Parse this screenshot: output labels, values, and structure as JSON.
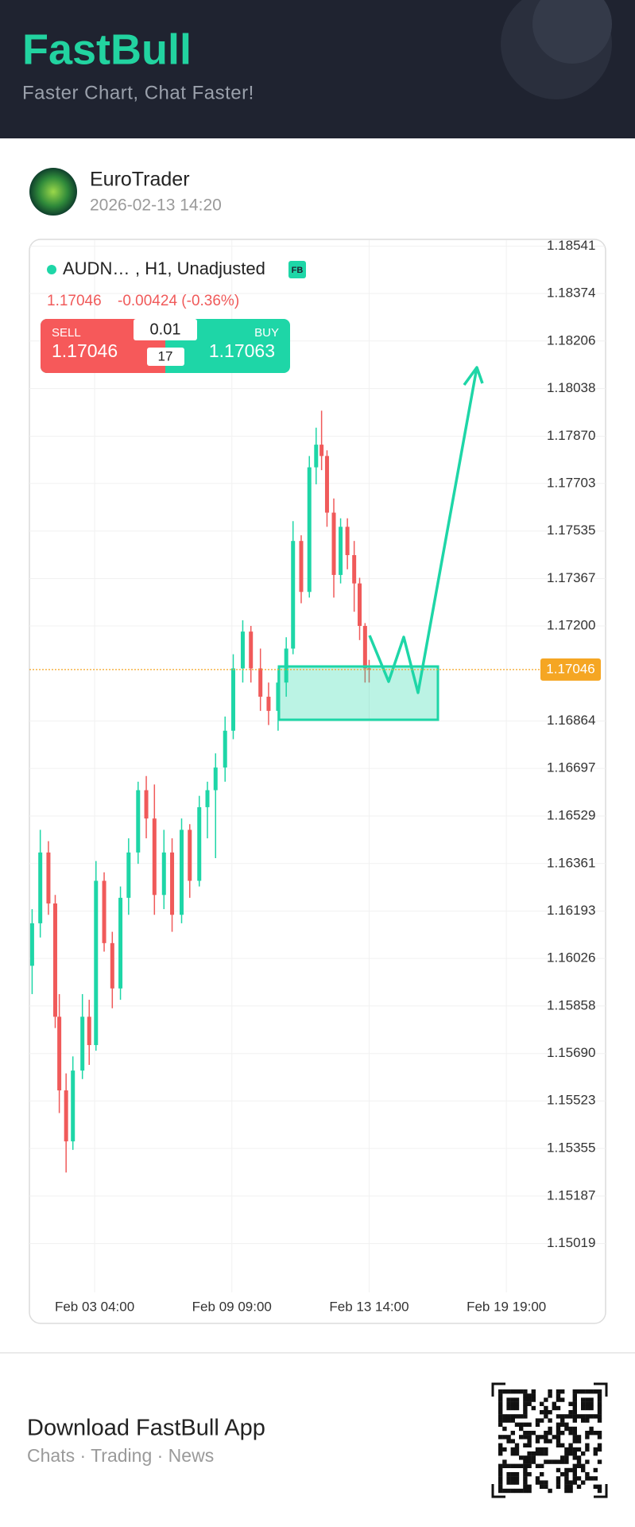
{
  "header": {
    "brand": "FastBull",
    "tagline": "Faster Chart, Chat Faster!"
  },
  "post": {
    "author": "EuroTrader",
    "timestamp": "2026-02-13 14:20"
  },
  "chart_data": {
    "type": "candlestick",
    "symbol": "AUDN…",
    "details": ", H1, Unadjusted",
    "badge": "FB",
    "price": "1.17046",
    "change": "-0.00424 (-0.36%)",
    "trade": {
      "sell_label": "SELL",
      "sell_price": "1.17046",
      "lot": "0.01",
      "spread": "17",
      "buy_label": "BUY",
      "buy_price": "1.17063"
    },
    "x": [
      -46,
      -40,
      -34,
      -29,
      -26,
      -21,
      -16,
      -9,
      -4,
      1,
      7,
      13,
      19,
      25,
      32,
      38,
      44,
      51,
      57,
      64,
      70,
      77,
      83,
      89,
      96,
      102,
      109,
      115,
      122,
      128,
      135,
      141,
      146,
      152,
      158,
      163,
      167,
      171,
      176,
      181,
      186,
      191,
      195,
      199,
      202
    ],
    "open": [
      1.16,
      1.1615,
      1.164,
      1.1622,
      1.1582,
      1.1556,
      1.1538,
      1.1563,
      1.1582,
      1.1572,
      1.163,
      1.1608,
      1.1592,
      1.1624,
      1.164,
      1.1662,
      1.1652,
      1.1625,
      1.164,
      1.1618,
      1.1648,
      1.163,
      1.1656,
      1.1662,
      1.167,
      1.1683,
      1.1705,
      1.1718,
      1.1705,
      1.1695,
      1.169,
      1.17,
      1.1712,
      1.175,
      1.1732,
      1.1776,
      1.1784,
      1.178,
      1.176,
      1.1738,
      1.1755,
      1.1745,
      1.1735,
      1.172,
      1.1705
    ],
    "high": [
      1.162,
      1.1648,
      1.1644,
      1.1625,
      1.159,
      1.1562,
      1.1568,
      1.159,
      1.1588,
      1.1637,
      1.1633,
      1.1612,
      1.1628,
      1.1645,
      1.1665,
      1.1667,
      1.1664,
      1.1648,
      1.1645,
      1.1652,
      1.165,
      1.166,
      1.1665,
      1.1675,
      1.1688,
      1.171,
      1.1722,
      1.172,
      1.1712,
      1.17,
      1.1705,
      1.1716,
      1.1757,
      1.1752,
      1.178,
      1.179,
      1.1796,
      1.1782,
      1.1765,
      1.1758,
      1.1758,
      1.175,
      1.1737,
      1.1721,
      1.1708
    ],
    "low": [
      1.159,
      1.161,
      1.1618,
      1.1578,
      1.1548,
      1.1527,
      1.1535,
      1.156,
      1.1565,
      1.157,
      1.1605,
      1.1585,
      1.1588,
      1.1618,
      1.1636,
      1.1645,
      1.1618,
      1.162,
      1.1612,
      1.1615,
      1.1624,
      1.1628,
      1.1645,
      1.1638,
      1.1665,
      1.168,
      1.17,
      1.17,
      1.169,
      1.1685,
      1.1683,
      1.1695,
      1.171,
      1.1728,
      1.173,
      1.177,
      1.1775,
      1.1755,
      1.173,
      1.1735,
      1.174,
      1.1725,
      1.1715,
      1.17,
      1.17
    ],
    "close": [
      1.1615,
      1.164,
      1.1622,
      1.1582,
      1.1556,
      1.1538,
      1.1563,
      1.1582,
      1.1572,
      1.163,
      1.1608,
      1.1592,
      1.1624,
      1.164,
      1.1662,
      1.1652,
      1.1625,
      1.164,
      1.1618,
      1.1648,
      1.163,
      1.1656,
      1.1662,
      1.167,
      1.1683,
      1.1705,
      1.1718,
      1.1705,
      1.1695,
      1.169,
      1.17,
      1.1712,
      1.175,
      1.1732,
      1.1776,
      1.1784,
      1.178,
      1.176,
      1.1738,
      1.1755,
      1.1745,
      1.1735,
      1.172,
      1.1705,
      1.17046
    ],
    "up_color": "#1ed6a7",
    "down_color": "#f05a5a",
    "last_price": 1.17046,
    "last_price_color": "#f5a623",
    "xlim": [
      -48,
      376
    ],
    "xticks": [
      {
        "value": 0,
        "label": "Feb 03 04:00"
      },
      {
        "value": 101,
        "label": "Feb 09 09:00"
      },
      {
        "value": 202,
        "label": "Feb 13 14:00"
      },
      {
        "value": 303,
        "label": "Feb 19 19:00"
      }
    ],
    "ylim": [
      1.14858,
      1.18562
    ],
    "yticks": [
      1.18541,
      1.18374,
      1.18206,
      1.18038,
      {
        "value": 1.1787,
        "label": "1.17870"
      },
      1.17703,
      1.17535,
      1.17367,
      {
        "value": 1.172,
        "label": "1.17200"
      },
      1.16864,
      1.16697,
      1.16529,
      1.16361,
      1.16193,
      1.16026,
      1.15858,
      {
        "value": 1.1569,
        "label": "1.15690"
      },
      1.15523,
      1.15355,
      1.15187,
      1.15019
    ],
    "grid": true
  },
  "footer": {
    "title": "Download FastBull App",
    "subtitle": "Chats · Trading · News"
  }
}
